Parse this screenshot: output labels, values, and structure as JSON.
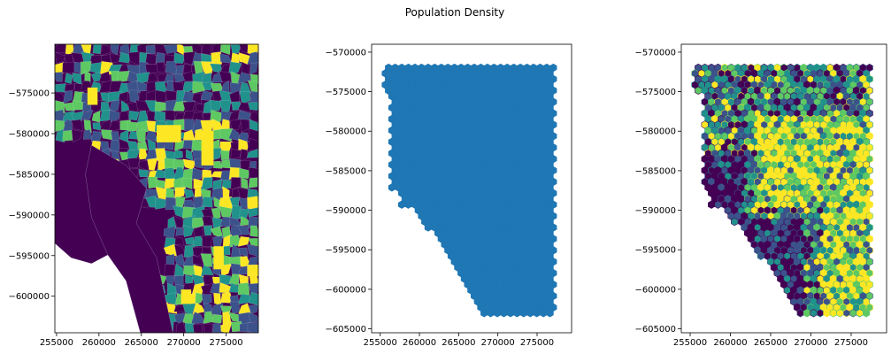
{
  "figure": {
    "title": "Population Density"
  },
  "colors": {
    "viridis": [
      "#440154",
      "#3b528b",
      "#21918c",
      "#5ec962",
      "#fde725"
    ],
    "uniform_fill": "#1f77b4",
    "axis": "#000000"
  },
  "chart_data": [
    {
      "type": "heatmap",
      "title": "",
      "description_key": "choropleth-census-tracts",
      "xlabel": "",
      "ylabel": "",
      "xlim": [
        254800,
        278800
      ],
      "ylim": [
        -604500,
        -569000
      ],
      "xticks": [
        255000,
        260000,
        265000,
        270000,
        275000
      ],
      "yticks": [
        -575000,
        -580000,
        -585000,
        -590000,
        -595000,
        -600000
      ],
      "xtick_labels": [
        "255000",
        "260000",
        "265000",
        "270000",
        "275000"
      ],
      "ytick_labels": [
        "−575000",
        "−580000",
        "−585000",
        "−590000",
        "−595000",
        "−600000"
      ],
      "colormap": "viridis"
    },
    {
      "type": "heatmap",
      "title": "",
      "description_key": "hexagonal-grid-uniform",
      "xlabel": "",
      "ylabel": "",
      "xlim": [
        253900,
        279400
      ],
      "ylim": [
        -605500,
        -569000
      ],
      "xticks": [
        255000,
        260000,
        265000,
        270000,
        275000
      ],
      "yticks": [
        -570000,
        -575000,
        -580000,
        -585000,
        -590000,
        -595000,
        -600000,
        -605000
      ],
      "xtick_labels": [
        "255000",
        "260000",
        "265000",
        "270000",
        "275000"
      ],
      "ytick_labels": [
        "−570000",
        "−575000",
        "−580000",
        "−585000",
        "−590000",
        "−595000",
        "−600000",
        "−605000"
      ],
      "fill": "uniform"
    },
    {
      "type": "heatmap",
      "title": "",
      "description_key": "hexagonal-grid-density",
      "xlabel": "",
      "ylabel": "",
      "xlim": [
        253900,
        279400
      ],
      "ylim": [
        -605500,
        -569000
      ],
      "xticks": [
        255000,
        260000,
        265000,
        270000,
        275000
      ],
      "yticks": [
        -570000,
        -575000,
        -580000,
        -585000,
        -590000,
        -595000,
        -600000,
        -605000
      ],
      "xtick_labels": [
        "255000",
        "260000",
        "265000",
        "270000",
        "275000"
      ],
      "ytick_labels": [
        "−570000",
        "−575000",
        "−580000",
        "−585000",
        "−590000",
        "−595000",
        "−600000",
        "−605000"
      ],
      "colormap": "viridis"
    }
  ]
}
